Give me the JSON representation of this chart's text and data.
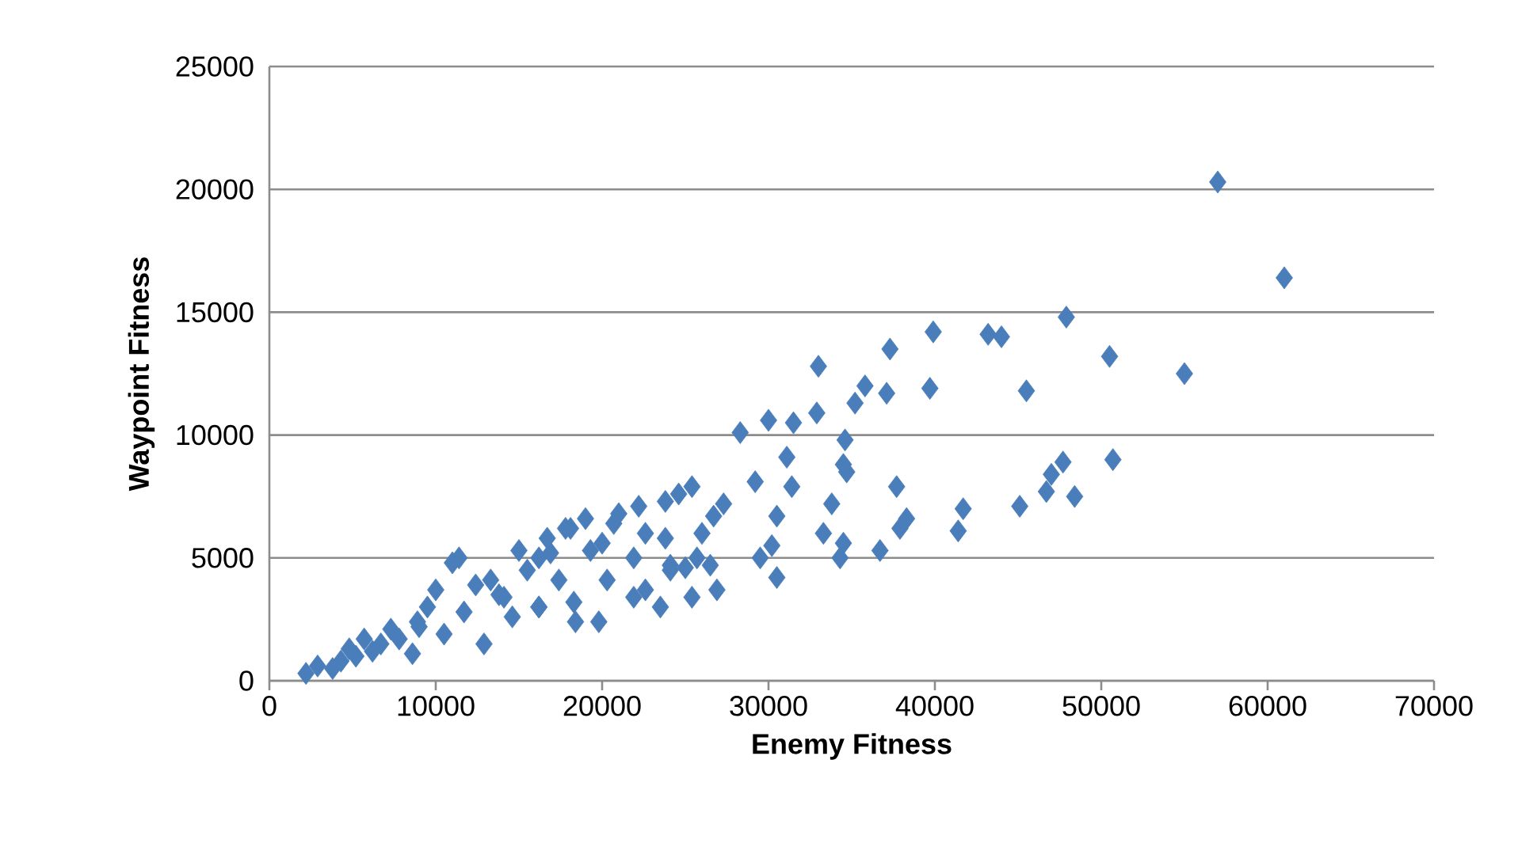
{
  "chart_data": {
    "type": "scatter",
    "xlabel": "Enemy Fitness",
    "ylabel": "Waypoint Fitness",
    "xlim": [
      0,
      70000
    ],
    "xticks": [
      0,
      10000,
      20000,
      30000,
      40000,
      50000,
      60000,
      70000
    ],
    "ylim": [
      0,
      25000
    ],
    "yticks": [
      0,
      5000,
      10000,
      15000,
      20000,
      25000
    ],
    "grid": "y",
    "marker": "diamond",
    "series": [
      {
        "color": "#4a7ebb",
        "x": [
          57000,
          61000,
          47900,
          50500,
          55000,
          45500,
          44000,
          43200,
          39900,
          37300,
          33000,
          39700,
          37100,
          35800,
          35200,
          32900,
          31500,
          30000,
          34600,
          31100,
          34500,
          34700,
          31400,
          37700,
          50700,
          47700,
          47000,
          46700,
          48400,
          45100,
          41700,
          41400,
          38300,
          37900,
          33800,
          30500,
          28300,
          29200,
          27300,
          26700,
          33300,
          34500,
          36700,
          34300,
          30200,
          29500,
          30500,
          26500,
          26900,
          25400,
          23500,
          25000,
          24100,
          21900,
          19800,
          18400,
          18300,
          16200,
          25400,
          24600,
          23800,
          22200,
          20700,
          19000,
          18100,
          22600,
          23800,
          21900,
          24100,
          16700,
          16200,
          19300,
          20300,
          22600,
          26000,
          25700,
          2200,
          2900,
          3800,
          4800,
          5200,
          5700,
          6700,
          7300,
          8600,
          8900,
          9500,
          10500,
          10000,
          11400,
          11700,
          12900,
          12400,
          13300,
          14600,
          14100,
          15000,
          16200,
          15500,
          16900,
          17400,
          17800,
          11000,
          9000,
          7800,
          6200,
          4300,
          13800,
          21000,
          20000
        ],
        "values": [
          20300,
          16400,
          14800,
          13200,
          12500,
          11800,
          14000,
          14100,
          14200,
          13500,
          12800,
          11900,
          11700,
          12000,
          11300,
          10900,
          10500,
          10600,
          9800,
          9100,
          8800,
          8500,
          7900,
          7900,
          9000,
          8900,
          8400,
          7700,
          7500,
          7100,
          7000,
          6100,
          6600,
          6200,
          7200,
          6700,
          10100,
          8100,
          7200,
          6700,
          6000,
          5600,
          5300,
          5000,
          5500,
          5000,
          4200,
          4700,
          3700,
          3400,
          3000,
          4600,
          4500,
          3400,
          2400,
          2400,
          3200,
          3000,
          7900,
          7600,
          7300,
          7100,
          6400,
          6600,
          6200,
          6000,
          5800,
          5000,
          4700,
          5800,
          5000,
          5300,
          4100,
          3700,
          6000,
          5000,
          300,
          600,
          500,
          1300,
          1000,
          1700,
          1500,
          2100,
          1100,
          2400,
          3000,
          1900,
          3700,
          5000,
          2800,
          1500,
          3900,
          4100,
          2600,
          3400,
          5300,
          3000,
          4500,
          5200,
          4100,
          6200,
          4800,
          2200,
          1700,
          1200,
          800,
          3500,
          6800,
          5600
        ]
      }
    ]
  }
}
